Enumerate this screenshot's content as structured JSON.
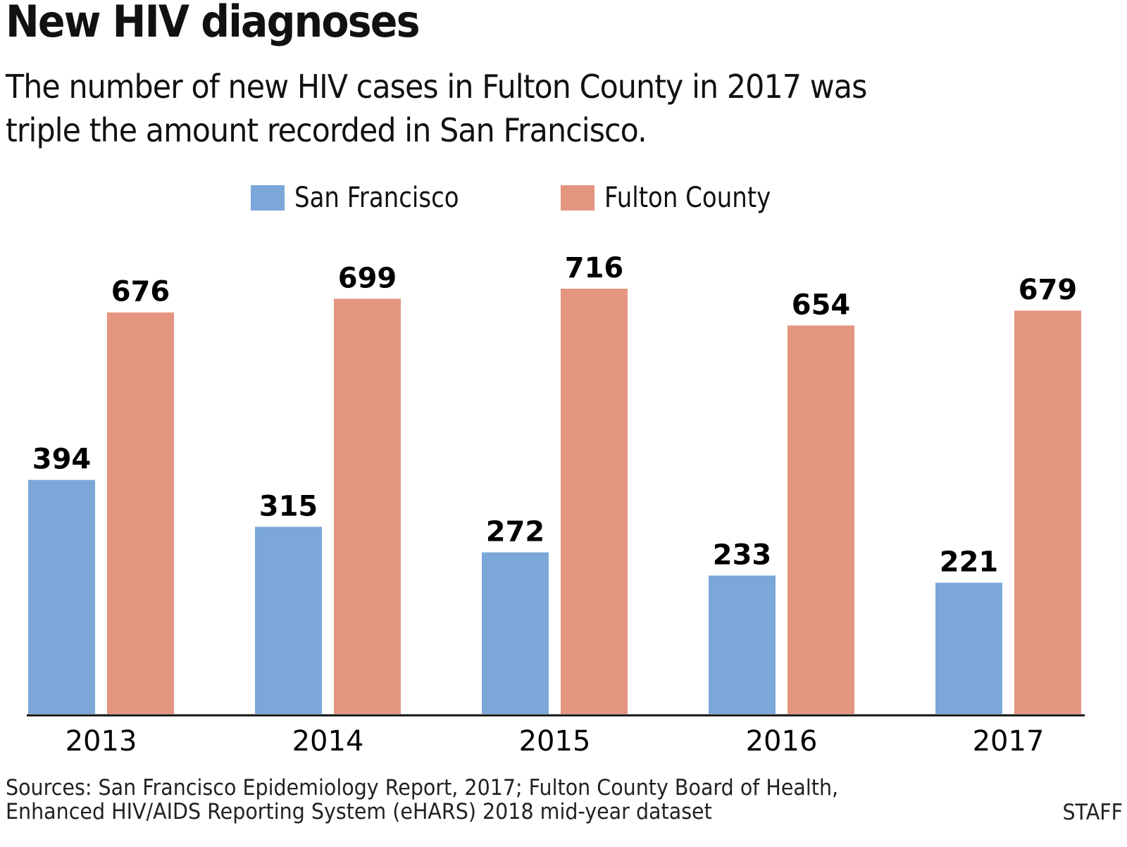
{
  "header": {
    "title": "New HIV diagnoses",
    "subtitle": "The number of new HIV cases in Fulton County in 2017 was triple the amount recorded in San Francisco."
  },
  "footer": {
    "sources": "Sources: San Francisco Epidemiology Report, 2017; Fulton County Board of Health, Enhanced HIV/AIDS Reporting System (eHARS) 2018 mid-year dataset",
    "credit": "STAFF"
  },
  "chart_data": {
    "type": "bar",
    "title": "New HIV diagnoses",
    "subtitle": "The number of new HIV cases in Fulton County in 2017 was triple the amount recorded in San Francisco.",
    "xlabel": "",
    "ylabel": "",
    "categories": [
      "2013",
      "2014",
      "2015",
      "2016",
      "2017"
    ],
    "series": [
      {
        "name": "San Francisco",
        "color": "#7ba7d9",
        "values": [
          394,
          315,
          272,
          233,
          221
        ]
      },
      {
        "name": "Fulton County",
        "color": "#e49580",
        "values": [
          676,
          699,
          716,
          654,
          679
        ]
      }
    ],
    "ylim": [
      0,
      716
    ],
    "grid": false,
    "legend": "top-center",
    "data_labels": true
  }
}
